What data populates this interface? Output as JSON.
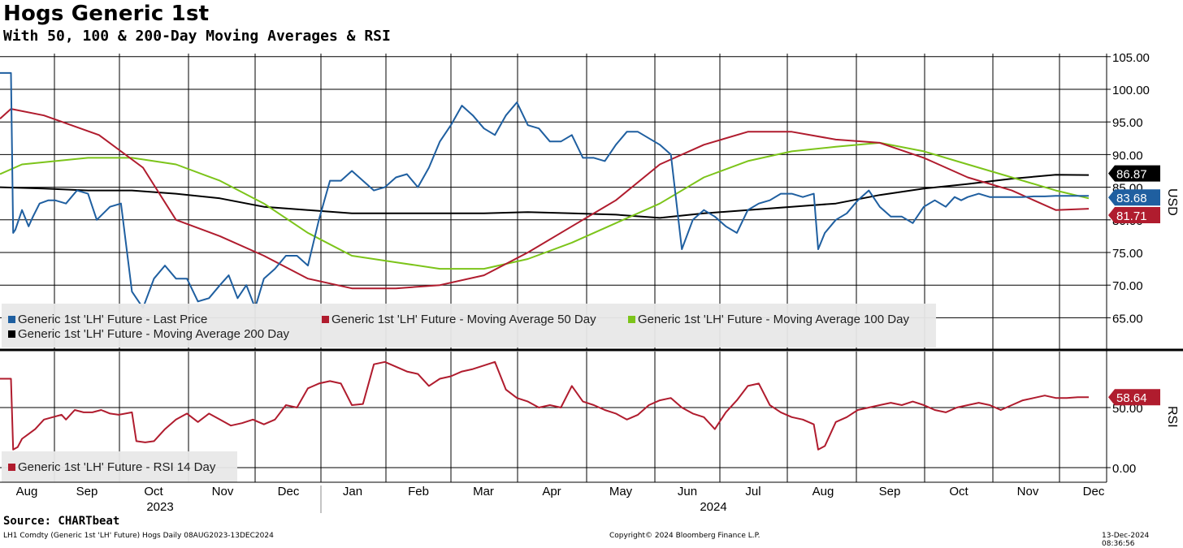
{
  "header": {
    "title": "Hogs Generic 1st",
    "subtitle": "With 50, 100 & 200-Day Moving Averages & RSI"
  },
  "footer": {
    "source": "Source: CHARTbeat",
    "security": "LH1 Comdty (Generic 1st 'LH' Future) Hogs  Daily 08AUG2023-13DEC2024",
    "copyright": "Copyright© 2024 Bloomberg Finance L.P.",
    "timestamp": "13-Dec-2024 08:36:56"
  },
  "colors": {
    "price": "#1f5fa0",
    "ma50": "#b01c2e",
    "ma100": "#7cc41a",
    "ma200": "#000000",
    "rsi": "#b01c2e",
    "grid": "#000000",
    "legend_bg": "#e8e8e8"
  },
  "chart_data": [
    {
      "type": "line",
      "title": "Hogs Generic 1st",
      "ylabel": "USD",
      "ylim": [
        60,
        105
      ],
      "yticks": [
        "105.00",
        "100.00",
        "95.00",
        "90.00",
        "85.00",
        "80.00",
        "75.00",
        "70.00",
        "65.00"
      ],
      "ytick_values": [
        105,
        100,
        95,
        90,
        85,
        80,
        75,
        70,
        65
      ],
      "x_months": [
        "Aug",
        "Sep",
        "Oct",
        "Nov",
        "Dec",
        "Jan",
        "Feb",
        "Mar",
        "Apr",
        "May",
        "Jun",
        "Jul",
        "Aug",
        "Sep",
        "Oct",
        "Nov",
        "Dec"
      ],
      "x_years": [
        "2023",
        "2024"
      ],
      "xlim_days": [
        0,
        495
      ],
      "legend": [
        "Generic 1st 'LH' Future - Last Price",
        "Generic 1st 'LH' Future - Moving Average 50 Day",
        "Generic 1st 'LH' Future - Moving Average 100 Day",
        "Generic 1st 'LH' Future - Moving Average 200 Day"
      ],
      "last_values": {
        "ma200": "86.87",
        "price": "83.68",
        "ma50": "81.71"
      },
      "series": [
        {
          "name": "Last Price",
          "key": "price",
          "x": [
            0,
            5,
            6,
            7,
            10,
            13,
            15,
            18,
            22,
            25,
            30,
            35,
            40,
            44,
            50,
            55,
            60,
            65,
            70,
            75,
            80,
            85,
            90,
            95,
            100,
            104,
            108,
            112,
            116,
            120,
            125,
            130,
            135,
            140,
            145,
            150,
            155,
            160,
            165,
            170,
            175,
            180,
            185,
            190,
            195,
            200,
            205,
            210,
            215,
            220,
            225,
            230,
            235,
            240,
            245,
            250,
            255,
            260,
            265,
            270,
            275,
            280,
            285,
            290,
            295,
            300,
            305,
            310,
            315,
            320,
            325,
            330,
            335,
            340,
            345,
            350,
            355,
            360,
            365,
            370,
            372,
            375,
            380,
            385,
            390,
            395,
            400,
            405,
            410,
            415,
            420,
            425,
            430,
            434,
            437,
            440,
            445,
            450,
            455,
            460,
            465,
            470,
            475,
            480,
            485,
            490,
            495
          ],
          "values": [
            102.5,
            102.5,
            78,
            78.5,
            81.5,
            79,
            80.5,
            82.5,
            83,
            83,
            82.5,
            84.5,
            84,
            80,
            82,
            82.5,
            69,
            66.5,
            71,
            73,
            71,
            71,
            67.5,
            68,
            70,
            71.5,
            68,
            70,
            66.5,
            71,
            72.5,
            74.5,
            74.5,
            73,
            80,
            86,
            86,
            87.5,
            86,
            84.5,
            85,
            86.5,
            87,
            85,
            88,
            92,
            94.5,
            97.5,
            96,
            94,
            93,
            96,
            98,
            94.5,
            94,
            92,
            92,
            93,
            89.5,
            89.5,
            89,
            91.5,
            93.5,
            93.5,
            92.5,
            91.5,
            90,
            75.5,
            80,
            81.5,
            80.5,
            79,
            78,
            81.5,
            82.5,
            83,
            84,
            84,
            83.5,
            84,
            75.5,
            78,
            80,
            81,
            83,
            84.5,
            82,
            80.5,
            80.5,
            79.5,
            82,
            83,
            82,
            83.5,
            83,
            83.5,
            84,
            83.5,
            83.5,
            83.5,
            83.5,
            83.6,
            83.6,
            83.68,
            83.68,
            83.68,
            83.68
          ]
        },
        {
          "name": "Moving Average 50 Day",
          "key": "ma50",
          "x": [
            0,
            5,
            20,
            45,
            65,
            80,
            100,
            120,
            140,
            160,
            180,
            200,
            220,
            240,
            260,
            280,
            300,
            320,
            340,
            360,
            380,
            400,
            420,
            440,
            460,
            480,
            495
          ],
          "values": [
            95.5,
            97,
            96,
            93,
            88,
            80,
            77.5,
            74.5,
            71,
            69.5,
            69.5,
            70,
            71.5,
            75,
            79,
            83,
            88.5,
            91.5,
            93.5,
            93.5,
            92.3,
            91.8,
            89.5,
            86.5,
            84.5,
            81.5,
            81.7
          ]
        },
        {
          "name": "Moving Average 100 Day",
          "key": "ma100",
          "x": [
            0,
            10,
            40,
            60,
            80,
            100,
            120,
            140,
            160,
            180,
            200,
            220,
            240,
            260,
            280,
            300,
            320,
            340,
            360,
            380,
            400,
            420,
            440,
            460,
            480,
            495
          ],
          "values": [
            87,
            88.5,
            89.5,
            89.5,
            88.5,
            86,
            82.5,
            78,
            74.5,
            73.5,
            72.5,
            72.5,
            74,
            76.5,
            79.5,
            82.5,
            86.5,
            89,
            90.5,
            91.2,
            91.8,
            90.5,
            88.5,
            86.5,
            84.5,
            83.3
          ]
        },
        {
          "name": "Moving Average 200 Day",
          "key": "ma200",
          "x": [
            0,
            20,
            40,
            60,
            80,
            100,
            120,
            140,
            160,
            180,
            200,
            220,
            240,
            260,
            280,
            300,
            320,
            340,
            360,
            380,
            400,
            420,
            440,
            460,
            480,
            495
          ],
          "values": [
            85,
            84.8,
            84.5,
            84.5,
            84,
            83.3,
            82,
            81.5,
            81,
            81,
            81,
            81,
            81.2,
            81,
            80.8,
            80.3,
            81,
            81.5,
            82,
            82.5,
            83.8,
            84.8,
            85.5,
            86.3,
            86.9,
            86.87
          ]
        }
      ]
    },
    {
      "type": "line",
      "title": "RSI",
      "ylabel": "RSI",
      "ylim": [
        -10,
        95
      ],
      "yticks": [
        "50.00",
        "0.00"
      ],
      "ytick_values": [
        50,
        0
      ],
      "legend": [
        "Generic 1st 'LH' Future - RSI 14 Day"
      ],
      "last_value": "58.64",
      "series": [
        {
          "name": "RSI 14 Day",
          "key": "rsi",
          "x": [
            0,
            5,
            6,
            8,
            10,
            13,
            16,
            20,
            24,
            28,
            30,
            34,
            38,
            42,
            46,
            50,
            54,
            60,
            62,
            66,
            70,
            75,
            80,
            85,
            90,
            95,
            100,
            105,
            110,
            115,
            120,
            125,
            130,
            135,
            140,
            145,
            150,
            155,
            160,
            165,
            170,
            175,
            180,
            185,
            190,
            195,
            200,
            205,
            210,
            215,
            220,
            225,
            230,
            235,
            240,
            245,
            250,
            255,
            260,
            265,
            270,
            275,
            280,
            285,
            290,
            295,
            300,
            305,
            310,
            315,
            320,
            325,
            330,
            335,
            340,
            345,
            350,
            355,
            360,
            365,
            370,
            372,
            375,
            380,
            385,
            390,
            395,
            400,
            405,
            410,
            415,
            420,
            425,
            430,
            435,
            440,
            445,
            450,
            455,
            460,
            465,
            470,
            475,
            480,
            485,
            490,
            495
          ],
          "values": [
            74,
            74,
            15,
            17,
            24,
            28,
            32,
            40,
            42,
            44,
            40,
            48,
            46,
            46,
            48,
            45,
            44,
            46,
            22,
            21,
            22,
            32,
            40,
            45,
            38,
            45,
            40,
            35,
            37,
            40,
            36,
            40,
            52,
            50,
            66,
            70,
            72,
            70,
            52,
            53,
            86,
            88,
            84,
            80,
            78,
            68,
            74,
            76,
            80,
            82,
            85,
            88,
            65,
            58,
            55,
            50,
            52,
            50,
            68,
            55,
            52,
            48,
            45,
            40,
            44,
            52,
            56,
            58,
            50,
            45,
            42,
            32,
            46,
            56,
            68,
            70,
            52,
            46,
            42,
            40,
            36,
            15,
            18,
            38,
            42,
            48,
            50,
            52,
            54,
            52,
            55,
            52,
            48,
            46,
            50,
            52,
            54,
            52,
            48,
            52,
            56,
            58,
            60,
            58,
            58,
            58.6,
            58.64
          ]
        }
      ]
    }
  ]
}
